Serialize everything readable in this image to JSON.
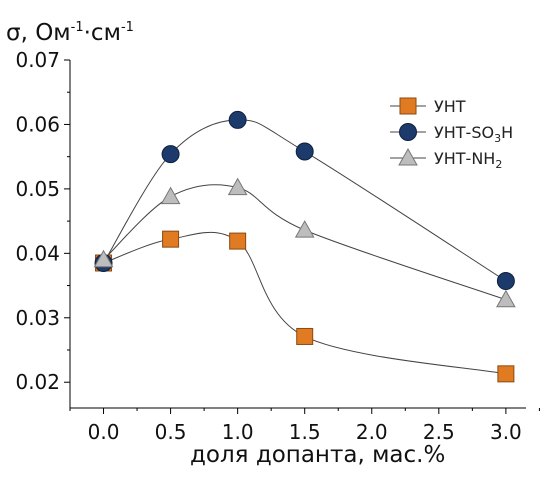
{
  "chart_data": {
    "type": "scatter",
    "title": "",
    "ylabel": "σ, Ом-1·см-1",
    "ylabel_parts": {
      "symbol": "σ, Ом",
      "sup1": "-1",
      "dot": "·см",
      "sup2": "-1"
    },
    "xlabel": "доля допанта, мас.%",
    "xlim": [
      -0.25,
      3.15
    ],
    "ylim": [
      0.016,
      0.07
    ],
    "x_ticks": [
      "0.0",
      "0.5",
      "1.0",
      "1.5",
      "2.0",
      "2.5",
      "3.0"
    ],
    "y_ticks": [
      "0.02",
      "0.03",
      "0.04",
      "0.05",
      "0.06",
      "0.07"
    ],
    "grid": false,
    "legend_position": "top-right",
    "curve_style": "smooth",
    "series": [
      {
        "name": "УНТ",
        "legend_parts": {
          "main": "УНТ",
          "sub": ""
        },
        "marker": "square",
        "color": "#E07B22",
        "x": [
          0.0,
          0.5,
          1.0,
          1.5,
          3.0
        ],
        "y": [
          0.0385,
          0.0422,
          0.0419,
          0.0271,
          0.0213
        ]
      },
      {
        "name": "УНТ-SO3H",
        "legend_parts": {
          "main": "УНТ-SO",
          "sub": "3",
          "tail": "H"
        },
        "marker": "circle",
        "color": "#1C3A6B",
        "x": [
          0.0,
          0.5,
          1.0,
          1.5,
          3.0
        ],
        "y": [
          0.0385,
          0.0554,
          0.0607,
          0.0558,
          0.0357
        ]
      },
      {
        "name": "УНТ-NH2",
        "legend_parts": {
          "main": "УНТ-NH",
          "sub": "2",
          "tail": ""
        },
        "marker": "triangle",
        "color": "#BDBDBD",
        "x": [
          0.0,
          0.5,
          1.0,
          1.5,
          3.0
        ],
        "y": [
          0.039,
          0.0488,
          0.0502,
          0.0436,
          0.0328
        ]
      }
    ]
  }
}
